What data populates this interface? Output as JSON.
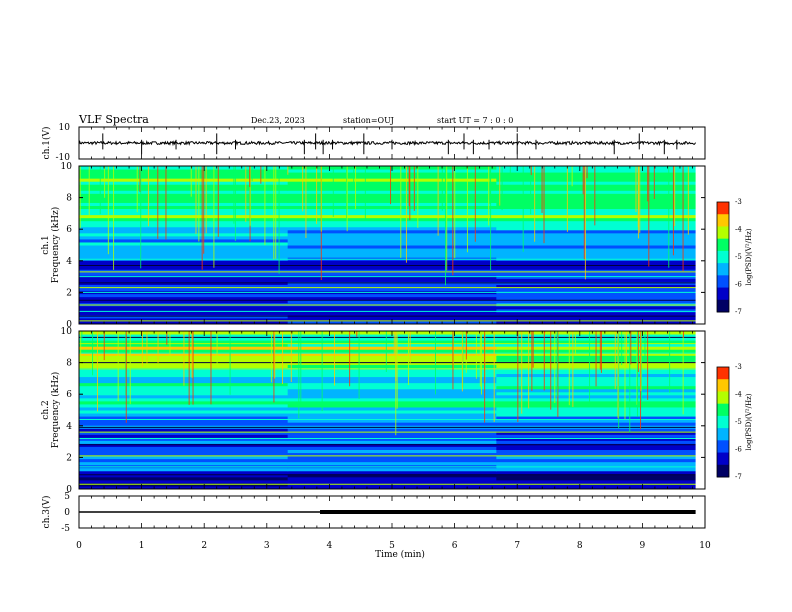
{
  "header": {
    "title": "VLF Spectra",
    "date": "Dec.23, 2023",
    "station": "station=OUJ",
    "start": "start UT =   7 : 0  : 0"
  },
  "chart_data": [
    {
      "type": "line",
      "name": "waveform-ch1",
      "ylabel": "ch.1(V)",
      "ylim": [
        -10,
        10
      ],
      "yticks": [
        "10",
        "-10"
      ],
      "xlim": [
        0,
        10
      ],
      "baseline": 0,
      "spikes_min": [
        0.38,
        1.0,
        1.55,
        2.2,
        2.5,
        3.6,
        3.78,
        3.9,
        4.05,
        4.55,
        5.0,
        5.9,
        6.15,
        6.3,
        6.55,
        7.0,
        7.3,
        8.55,
        8.95,
        9.35,
        9.55
      ],
      "color": "#000000"
    },
    {
      "type": "heatmap",
      "name": "spectrogram-ch1",
      "ylabel": "ch.1 Frequency (kHz)",
      "ylim": [
        0,
        10
      ],
      "yticks": [
        "0",
        "2",
        "4",
        "6",
        "8",
        "10"
      ],
      "xlim": [
        0,
        10
      ],
      "colorbar": {
        "label": "log(PSD)(V²/Hz)",
        "range": [
          -7,
          -3
        ],
        "ticks": [
          "-3",
          "-4",
          "-5",
          "-6",
          "-7"
        ]
      },
      "bands_khz": [
        0.2,
        0.5,
        0.8,
        1.2,
        1.5,
        2.0,
        2.3,
        2.6,
        3.0,
        3.3,
        3.7,
        4.1
      ]
    },
    {
      "type": "heatmap",
      "name": "spectrogram-ch2",
      "ylabel": "ch.2 Frequency (kHz)",
      "ylim": [
        0,
        10
      ],
      "yticks": [
        "0",
        "2",
        "4",
        "6",
        "8",
        "10"
      ],
      "xlim": [
        0,
        10
      ],
      "colorbar": {
        "label": "log(PSD)(V²/Hz)",
        "range": [
          -7,
          -3
        ],
        "ticks": [
          "-3",
          "-4",
          "-5",
          "-6",
          "-7"
        ]
      },
      "bands_khz": [
        0.3,
        0.9,
        1.4,
        2.1,
        2.8,
        3.2,
        3.6,
        3.9,
        4.4,
        7.6,
        8.0,
        8.6,
        9.2,
        9.6
      ]
    },
    {
      "type": "line",
      "name": "waveform-ch3",
      "ylabel": "ch.3(V)",
      "ylim": [
        -5,
        5
      ],
      "yticks": [
        "5",
        "0",
        "-5"
      ],
      "xlim": [
        0,
        10
      ],
      "level": 0,
      "thick_from": 3.85,
      "end": 9.85,
      "color": "#000000"
    }
  ],
  "xaxis": {
    "label": "Time (min)",
    "ticks": [
      "0",
      "1",
      "2",
      "3",
      "4",
      "5",
      "6",
      "7",
      "8",
      "9",
      "10"
    ],
    "data_end": 9.85
  }
}
